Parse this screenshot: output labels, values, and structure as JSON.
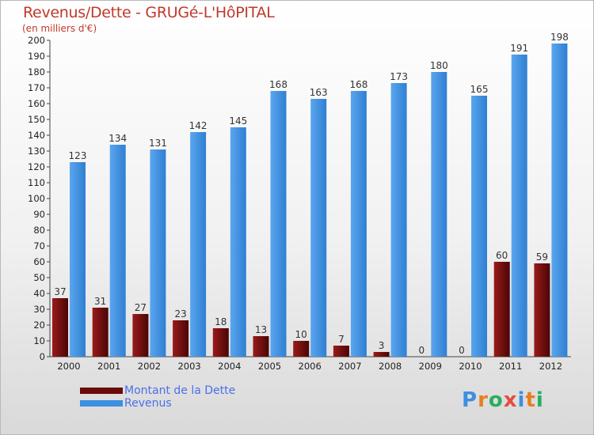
{
  "chart_data": {
    "type": "bar",
    "title": "Revenus/Dette - GRUGé-L'HôPITAL",
    "subtitle": "(en milliers d'€)",
    "categories": [
      "2000",
      "2001",
      "2002",
      "2003",
      "2004",
      "2005",
      "2006",
      "2007",
      "2008",
      "2009",
      "2010",
      "2011",
      "2012"
    ],
    "series": [
      {
        "name": "Montant de la Dette",
        "color": "#7a0e0e",
        "values": [
          37,
          31,
          27,
          23,
          18,
          13,
          10,
          7,
          3,
          0,
          0,
          60,
          59
        ]
      },
      {
        "name": "Revenus",
        "color": "#3d8fe0",
        "values": [
          123,
          134,
          131,
          142,
          145,
          168,
          163,
          168,
          173,
          180,
          165,
          191,
          198
        ]
      }
    ],
    "ylim": [
      0,
      200
    ],
    "yticks": [
      0,
      10,
      20,
      30,
      40,
      50,
      60,
      70,
      80,
      90,
      100,
      110,
      120,
      130,
      140,
      150,
      160,
      170,
      180,
      190,
      200
    ],
    "grid": false,
    "legend_position": "bottom-left"
  },
  "legend": {
    "items": [
      {
        "label": "Montant de la Dette",
        "color": "#6b0a0a"
      },
      {
        "label": "Revenus",
        "color": "#3d8fe0"
      }
    ]
  },
  "logo": {
    "text": "Proxiti",
    "letter_colors": [
      "#3d8fe0",
      "#e67e22",
      "#27ae60",
      "#e74c3c",
      "#3d8fe0",
      "#e67e22",
      "#27ae60"
    ]
  }
}
